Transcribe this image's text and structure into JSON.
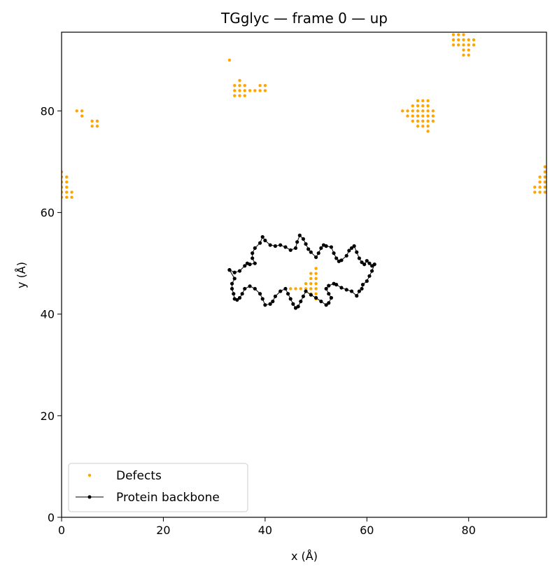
{
  "chart_data": {
    "type": "scatter",
    "title": "TGglyc — frame 0 — up",
    "xlabel": "x (Å)",
    "ylabel": "y (Å)",
    "xlim": [
      0,
      95.3
    ],
    "ylim": [
      0,
      95.5
    ],
    "xticks": [
      "0",
      "20",
      "40",
      "60",
      "80"
    ],
    "yticks": [
      "0",
      "20",
      "40",
      "60",
      "80"
    ],
    "xtick_values": [
      0,
      20,
      40,
      60,
      80
    ],
    "ytick_values": [
      0,
      20,
      40,
      60,
      80
    ],
    "grid": false,
    "legend_position": "lower-left",
    "colors": {
      "defects": "#FFA500",
      "backbone": "#000000"
    },
    "series": [
      {
        "name": "Defects",
        "kind": "scatter",
        "points": [
          [
            33,
            90
          ],
          [
            34,
            84
          ],
          [
            35,
            84
          ],
          [
            36,
            84
          ],
          [
            34,
            85
          ],
          [
            35,
            85
          ],
          [
            36,
            85
          ],
          [
            35,
            86
          ],
          [
            34,
            83
          ],
          [
            35,
            83
          ],
          [
            36,
            83
          ],
          [
            37,
            84
          ],
          [
            38,
            84
          ],
          [
            39,
            84
          ],
          [
            40,
            84
          ],
          [
            39,
            85
          ],
          [
            40,
            85
          ],
          [
            3,
            80
          ],
          [
            4,
            80
          ],
          [
            4,
            79
          ],
          [
            6,
            78
          ],
          [
            7,
            78
          ],
          [
            6,
            77
          ],
          [
            7,
            77
          ],
          [
            0,
            68
          ],
          [
            0,
            67
          ],
          [
            1,
            67
          ],
          [
            0,
            66
          ],
          [
            1,
            66
          ],
          [
            0,
            65
          ],
          [
            1,
            65
          ],
          [
            0,
            64
          ],
          [
            1,
            64
          ],
          [
            2,
            64
          ],
          [
            0,
            63
          ],
          [
            1,
            63
          ],
          [
            2,
            63
          ],
          [
            67,
            80
          ],
          [
            68,
            80
          ],
          [
            69,
            80
          ],
          [
            68,
            79
          ],
          [
            69,
            79
          ],
          [
            70,
            79
          ],
          [
            71,
            79
          ],
          [
            72,
            79
          ],
          [
            73,
            79
          ],
          [
            69,
            78
          ],
          [
            70,
            78
          ],
          [
            71,
            78
          ],
          [
            72,
            78
          ],
          [
            73,
            78
          ],
          [
            70,
            77
          ],
          [
            71,
            77
          ],
          [
            72,
            77
          ],
          [
            72,
            76
          ],
          [
            69,
            81
          ],
          [
            70,
            81
          ],
          [
            71,
            81
          ],
          [
            72,
            81
          ],
          [
            70,
            82
          ],
          [
            71,
            82
          ],
          [
            72,
            82
          ],
          [
            70,
            80
          ],
          [
            71,
            80
          ],
          [
            72,
            80
          ],
          [
            73,
            80
          ],
          [
            77,
            95
          ],
          [
            78,
            95
          ],
          [
            79,
            95
          ],
          [
            77,
            94
          ],
          [
            78,
            94
          ],
          [
            79,
            94
          ],
          [
            80,
            94
          ],
          [
            81,
            94
          ],
          [
            77,
            93
          ],
          [
            78,
            93
          ],
          [
            79,
            93
          ],
          [
            80,
            93
          ],
          [
            81,
            93
          ],
          [
            79,
            92
          ],
          [
            80,
            92
          ],
          [
            79,
            91
          ],
          [
            80,
            91
          ],
          [
            93,
            65
          ],
          [
            94,
            65
          ],
          [
            95,
            65
          ],
          [
            93,
            64
          ],
          [
            94,
            64
          ],
          [
            95,
            64
          ],
          [
            94,
            66
          ],
          [
            95,
            66
          ],
          [
            94,
            67
          ],
          [
            95,
            67
          ],
          [
            95,
            68
          ],
          [
            95,
            69
          ],
          [
            50,
            49
          ],
          [
            49,
            48
          ],
          [
            50,
            48
          ],
          [
            49,
            47
          ],
          [
            50,
            47
          ],
          [
            48,
            46
          ],
          [
            49,
            46
          ],
          [
            50,
            46
          ],
          [
            47,
            45
          ],
          [
            48,
            45
          ],
          [
            49,
            45
          ],
          [
            50,
            45
          ],
          [
            45,
            45
          ],
          [
            46,
            45
          ],
          [
            49,
            44
          ],
          [
            50,
            44
          ],
          [
            50,
            43
          ]
        ]
      },
      {
        "name": "Protein backbone",
        "kind": "line-marker",
        "points": [
          [
            33,
            48.7
          ],
          [
            34,
            48.2
          ],
          [
            35,
            48.5
          ],
          [
            36,
            49.5
          ],
          [
            36.5,
            50
          ],
          [
            37,
            49.8
          ],
          [
            38,
            50
          ],
          [
            37.5,
            51
          ],
          [
            37.5,
            52
          ],
          [
            38,
            53
          ],
          [
            39,
            54
          ],
          [
            39.5,
            55.2
          ],
          [
            40,
            54.5
          ],
          [
            41,
            53.6
          ],
          [
            42,
            53.4
          ],
          [
            43,
            53.6
          ],
          [
            44,
            53.2
          ],
          [
            45,
            52.6
          ],
          [
            46,
            53
          ],
          [
            46.3,
            54.2
          ],
          [
            46.8,
            55.5
          ],
          [
            47.5,
            54.8
          ],
          [
            48,
            53.8
          ],
          [
            48.5,
            52.8
          ],
          [
            49,
            52.2
          ],
          [
            50,
            51.2
          ],
          [
            50.5,
            52
          ],
          [
            51,
            53
          ],
          [
            51.5,
            53.6
          ],
          [
            52,
            53.4
          ],
          [
            53,
            53.2
          ],
          [
            53.5,
            52
          ],
          [
            54,
            51
          ],
          [
            54.5,
            50.4
          ],
          [
            55,
            50.6
          ],
          [
            56,
            51.5
          ],
          [
            56.5,
            52.5
          ],
          [
            57,
            53
          ],
          [
            57.5,
            53.4
          ],
          [
            58,
            52.2
          ],
          [
            58.5,
            51
          ],
          [
            59,
            50.2
          ],
          [
            59.5,
            49.8
          ],
          [
            60,
            50.5
          ],
          [
            60.5,
            50
          ],
          [
            61,
            49.5
          ],
          [
            61.5,
            49.8
          ],
          [
            61,
            48.5
          ],
          [
            60.5,
            47.5
          ],
          [
            60,
            46.5
          ],
          [
            59.2,
            45.8
          ],
          [
            59,
            45
          ],
          [
            58.5,
            44.5
          ],
          [
            58,
            43.6
          ],
          [
            57,
            44.5
          ],
          [
            56,
            44.8
          ],
          [
            55,
            45.2
          ],
          [
            54,
            45.8
          ],
          [
            53.5,
            46
          ],
          [
            52.5,
            45.6
          ],
          [
            52,
            45
          ],
          [
            52.5,
            44
          ],
          [
            53,
            43.2
          ],
          [
            52.5,
            42.2
          ],
          [
            52,
            41.8
          ],
          [
            51,
            42.5
          ],
          [
            50,
            43.2
          ],
          [
            49,
            43.8
          ],
          [
            48,
            44.5
          ],
          [
            47.5,
            43.5
          ],
          [
            47,
            42.5
          ],
          [
            46.5,
            41.5
          ],
          [
            46,
            41.2
          ],
          [
            45.5,
            42
          ],
          [
            45,
            43
          ],
          [
            44.5,
            44
          ],
          [
            44,
            45
          ],
          [
            43,
            44.5
          ],
          [
            42,
            43.5
          ],
          [
            41.5,
            42.5
          ],
          [
            41,
            42
          ],
          [
            40,
            41.8
          ],
          [
            39.5,
            43
          ],
          [
            39,
            44
          ],
          [
            38,
            45
          ],
          [
            37,
            45.5
          ],
          [
            36,
            45
          ],
          [
            35.5,
            44
          ],
          [
            35,
            43.2
          ],
          [
            34.5,
            42.8
          ],
          [
            34,
            43
          ],
          [
            33.8,
            44
          ],
          [
            33.5,
            45
          ],
          [
            33.5,
            46
          ],
          [
            34,
            47
          ],
          [
            33,
            48.7
          ]
        ]
      }
    ]
  }
}
